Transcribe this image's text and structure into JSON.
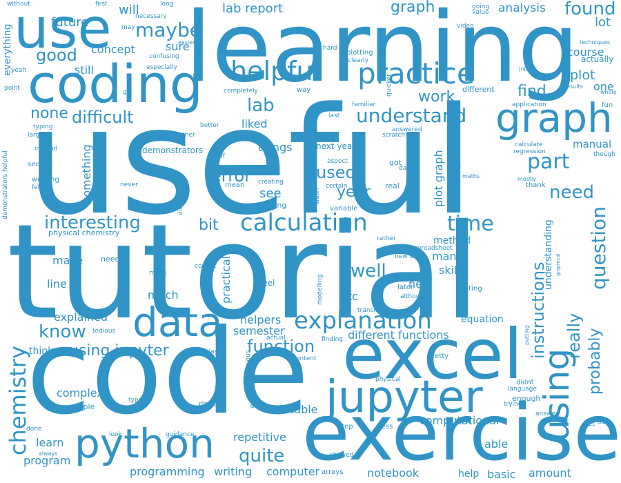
{
  "color": "#3194c6",
  "words": [
    "useful",
    "tutorial",
    "code",
    "learning",
    "exercise",
    "excel",
    "coding",
    "use",
    "jupyter",
    "python",
    "data",
    "graph",
    "using",
    "practice",
    "explanation",
    "helpful",
    "calculation",
    "chemistry",
    "maybe",
    "understand",
    "interesting",
    "found",
    "part",
    "time",
    "question",
    "instructions",
    "difficult",
    "error",
    "lab",
    "know",
    "well",
    "really",
    "probably",
    "need",
    "function",
    "good",
    "quite",
    "used",
    "year",
    "work",
    "plotting",
    "graph",
    "lab report",
    "analysis",
    "using jupyter",
    "bit",
    "lot",
    "concept",
    "find",
    "plot",
    "course",
    "none",
    "future",
    "will",
    "sure",
    "liked",
    "things",
    "next year",
    "see",
    "copying",
    "creating",
    "mean",
    "stuff",
    "demonstrators",
    "helpers",
    "semester",
    "different functions",
    "equation",
    "explained",
    "make",
    "line",
    "much",
    "etc",
    "new",
    "skill",
    "many",
    "method",
    "able",
    "table",
    "computational",
    "complex",
    "example",
    "program",
    "learn",
    "repetitive",
    "notebook",
    "help",
    "basic",
    "amount",
    "programming",
    "writing",
    "computer",
    "arrays",
    "practical",
    "plot graph",
    "something",
    "understanding",
    "one",
    "manual",
    "actually",
    "still",
    "everything",
    "physical chemistry",
    "demonstrators helpful",
    "think",
    "right",
    "type",
    "done",
    "always",
    "look",
    "guidance",
    "showed",
    "step",
    "less",
    "yet",
    "ask",
    "answer",
    "enough",
    "trying",
    "language",
    "didnt",
    "pretty",
    "physical",
    "content",
    "display",
    "enjoyed",
    "previous",
    "actual",
    "finding",
    "transition",
    "modelling",
    "although",
    "later",
    "new skill",
    "rather",
    "spreadsheet",
    "correct",
    "setting",
    "graphical",
    "putting",
    "feel",
    "needed",
    "made",
    "tedious",
    "instead",
    "section",
    "working",
    "felt",
    "never",
    "typing",
    "large",
    "together",
    "better",
    "last",
    "familiar",
    "scratch",
    "answered",
    "application",
    "calculate",
    "regression",
    "though",
    "maths",
    "mostly",
    "thank",
    "problem",
    "aspect",
    "certain",
    "wasn",
    "variable",
    "got",
    "day",
    "real",
    "didn",
    "go",
    "completely",
    "way",
    "quicker",
    "clearly",
    "hard",
    "especially",
    "confusing",
    "yeah",
    "point",
    "without",
    "first",
    "long",
    "necessary",
    "may",
    "easier",
    "video",
    "going",
    "value",
    "jupiter",
    "techniques",
    "results",
    "whole",
    "fun",
    "different"
  ]
}
